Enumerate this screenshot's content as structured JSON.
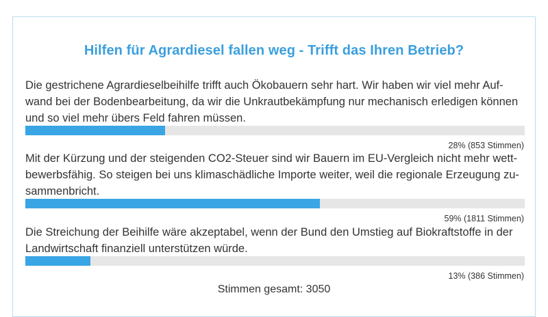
{
  "poll": {
    "title": "Hilfen für Agrardiesel fallen weg - Trifft das Ihren Betrieb?",
    "options": [
      {
        "text": "Die gestrichene Agrardieselbeihilfe trifft auch Ökobauern sehr hart. Wir haben wir viel mehr Auf­wand bei der Bodenbearbeitung, da wir die Unkrautbekämpfung nur mechanisch erledigen können und so viel mehr übers Feld fahren müssen.",
        "percent": 28,
        "result_label": "28% (853 Stimmen)"
      },
      {
        "text": "Mit der Kürzung und der steigenden CO2-Steuer sind wir Bauern im EU-Vergleich nicht mehr wett­bewerbsfähig. So steigen bei uns klimaschädliche Importe weiter, weil die regionale Erzeugung zu­sammenbricht.",
        "percent": 59,
        "result_label": "59% (1811 Stimmen)"
      },
      {
        "text": "Die Streichung der Beihilfe wäre akzeptabel, wenn der Bund den Umstieg auf Biokraftstoffe in der Landwirtschaft finanziell unterstützen würde.",
        "percent": 13,
        "result_label": "13% (386 Stimmen)"
      }
    ],
    "total_label": "Stimmen gesamt: 3050"
  },
  "colors": {
    "accent": "#3aa5e4",
    "title": "#3a9fdd",
    "bar_track": "#e6e6e6",
    "border": "#b9dcef"
  }
}
